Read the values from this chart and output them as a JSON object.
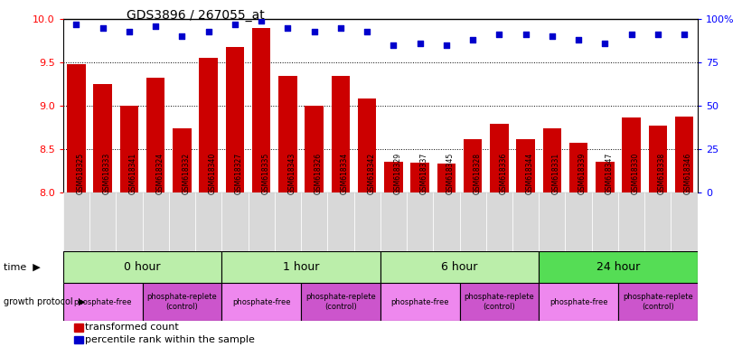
{
  "title": "GDS3896 / 267055_at",
  "samples": [
    "GSM618325",
    "GSM618333",
    "GSM618341",
    "GSM618324",
    "GSM618332",
    "GSM618340",
    "GSM618327",
    "GSM618335",
    "GSM618343",
    "GSM618326",
    "GSM618334",
    "GSM618342",
    "GSM618329",
    "GSM618337",
    "GSM618345",
    "GSM618328",
    "GSM618336",
    "GSM618344",
    "GSM618331",
    "GSM618339",
    "GSM618347",
    "GSM618330",
    "GSM618338",
    "GSM618346"
  ],
  "transformed_count": [
    9.48,
    9.25,
    9.0,
    9.32,
    8.74,
    9.55,
    9.68,
    9.9,
    9.35,
    9.0,
    9.35,
    9.08,
    8.36,
    8.34,
    8.33,
    8.62,
    8.79,
    8.62,
    8.74,
    8.57,
    8.36,
    8.87,
    8.77,
    8.88
  ],
  "percentile_rank": [
    97,
    95,
    93,
    96,
    90,
    93,
    97,
    99,
    95,
    93,
    95,
    93,
    85,
    86,
    85,
    88,
    91,
    91,
    90,
    88,
    86,
    91,
    91,
    91
  ],
  "ylim_left": [
    8.0,
    10.0
  ],
  "ylim_right": [
    0,
    100
  ],
  "yticks_left": [
    8.0,
    8.5,
    9.0,
    9.5,
    10.0
  ],
  "yticks_right": [
    0,
    25,
    50,
    75,
    100
  ],
  "ytick_labels_right": [
    "0",
    "25",
    "50",
    "75",
    "100%"
  ],
  "bar_color": "#cc0000",
  "dot_color": "#0000cc",
  "bar_width": 0.7,
  "time_groups": [
    {
      "label": "0 hour",
      "start": 0,
      "end": 6,
      "color": "#bbeeaa"
    },
    {
      "label": "1 hour",
      "start": 6,
      "end": 12,
      "color": "#bbeeaa"
    },
    {
      "label": "6 hour",
      "start": 12,
      "end": 18,
      "color": "#bbeeaa"
    },
    {
      "label": "24 hour",
      "start": 18,
      "end": 24,
      "color": "#55dd55"
    }
  ],
  "protocol_groups": [
    {
      "label": "phosphate-free",
      "start": 0,
      "end": 3,
      "color": "#ee88ee"
    },
    {
      "label": "phosphate-replete\n(control)",
      "start": 3,
      "end": 6,
      "color": "#cc55cc"
    },
    {
      "label": "phosphate-free",
      "start": 6,
      "end": 9,
      "color": "#ee88ee"
    },
    {
      "label": "phosphate-replete\n(control)",
      "start": 9,
      "end": 12,
      "color": "#cc55cc"
    },
    {
      "label": "phosphate-free",
      "start": 12,
      "end": 15,
      "color": "#ee88ee"
    },
    {
      "label": "phosphate-replete\n(control)",
      "start": 15,
      "end": 18,
      "color": "#cc55cc"
    },
    {
      "label": "phosphate-free",
      "start": 18,
      "end": 21,
      "color": "#ee88ee"
    },
    {
      "label": "phosphate-replete\n(control)",
      "start": 21,
      "end": 24,
      "color": "#cc55cc"
    }
  ],
  "legend_bar_label": "transformed count",
  "legend_dot_label": "percentile rank within the sample"
}
